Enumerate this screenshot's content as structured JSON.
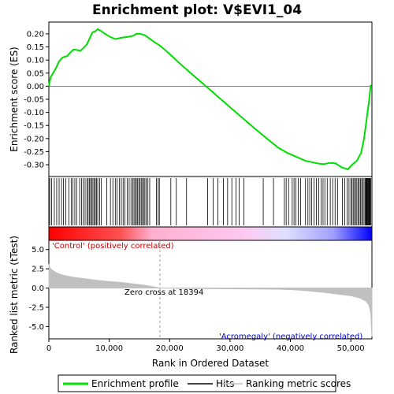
{
  "chart_data": [
    {
      "type": "line",
      "title": "Enrichment plot: V$EVI1_04",
      "xlabel": "",
      "ylabel": "Enrichment score (ES)",
      "xlim": [
        0,
        53500
      ],
      "ylim": [
        -0.345,
        0.245
      ],
      "yticks": [
        0.2,
        0.15,
        0.1,
        0.05,
        0.0,
        -0.05,
        -0.1,
        -0.15,
        -0.2,
        -0.25,
        -0.3
      ],
      "ytick_labels": [
        "0.20",
        "0.15",
        "0.10",
        "0.05",
        "0.00",
        "-0.05",
        "-0.10",
        "-0.15",
        "-0.20",
        "-0.25",
        "-0.30"
      ],
      "color": "#00dd00",
      "series": [
        {
          "name": "Enrichment profile",
          "x": [
            0,
            300,
            700,
            1200,
            1700,
            2300,
            3000,
            3600,
            4100,
            4700,
            5200,
            5700,
            6300,
            6800,
            7200,
            7700,
            8100,
            8500,
            9000,
            10000,
            11000,
            12000,
            13000,
            14000,
            14500,
            15000,
            15800,
            16500,
            17500,
            18394,
            20000,
            22000,
            24000,
            26000,
            28000,
            30000,
            32000,
            34000,
            36000,
            38000,
            39500,
            40500,
            41500,
            42500,
            43500,
            44500,
            45500,
            46500,
            47500,
            48500,
            49500,
            50200,
            51000,
            51700,
            52200,
            52600,
            53000,
            53300
          ],
          "y": [
            0.0,
            0.035,
            0.05,
            0.07,
            0.095,
            0.11,
            0.115,
            0.13,
            0.14,
            0.138,
            0.135,
            0.145,
            0.16,
            0.185,
            0.205,
            0.21,
            0.218,
            0.213,
            0.205,
            0.19,
            0.18,
            0.185,
            0.188,
            0.193,
            0.2,
            0.2,
            0.196,
            0.185,
            0.168,
            0.155,
            0.123,
            0.08,
            0.04,
            0.0,
            -0.04,
            -0.08,
            -0.12,
            -0.16,
            -0.198,
            -0.235,
            -0.255,
            -0.265,
            -0.275,
            -0.285,
            -0.29,
            -0.295,
            -0.298,
            -0.293,
            -0.295,
            -0.31,
            -0.318,
            -0.3,
            -0.285,
            -0.255,
            -0.2,
            -0.13,
            -0.06,
            0.005
          ]
        }
      ]
    },
    {
      "type": "bar",
      "title": "",
      "xlabel": "",
      "ylabel": "",
      "series": [
        {
          "name": "Hits",
          "x": [
            150,
            450,
            900,
            1300,
            1700,
            2100,
            2400,
            2800,
            3300,
            3700,
            4000,
            4300,
            4600,
            5100,
            5400,
            5700,
            6000,
            6300,
            6500,
            6700,
            6900,
            7100,
            7300,
            7500,
            7700,
            7900,
            8100,
            8400,
            8700,
            9600,
            10200,
            10600,
            11000,
            11300,
            11700,
            12000,
            12300,
            12600,
            13000,
            13300,
            13600,
            13900,
            14100,
            14300,
            14500,
            14700,
            14900,
            15100,
            15300,
            15500,
            15700,
            15900,
            16100,
            16400,
            16700,
            17800,
            18100,
            18300,
            20200,
            21100,
            22800,
            26300,
            27200,
            28000,
            28900,
            29600,
            30300,
            31000,
            31500,
            32300,
            35500,
            37200,
            39000,
            39300,
            39700,
            40300,
            40600,
            40900,
            41300,
            41700,
            42500,
            42900,
            43200,
            43500,
            43900,
            44300,
            44700,
            45100,
            45400,
            45700,
            46100,
            46600,
            47000,
            47400,
            47800,
            48600,
            49000,
            49400,
            49700,
            50000,
            50200,
            50400,
            50600,
            50800,
            51000,
            51200,
            51400,
            51600,
            51800,
            52000,
            52200,
            52400,
            52500,
            52600,
            52700,
            52800,
            52900,
            53000,
            53100,
            53200,
            53300
          ]
        }
      ]
    },
    {
      "type": "area",
      "title": "",
      "xlabel": "Rank in Ordered Dataset",
      "ylabel": "Ranked list metric (tTest)",
      "xlim": [
        0,
        53500
      ],
      "ylim": [
        -6.6,
        6.2
      ],
      "xticks": [
        0,
        10000,
        20000,
        30000,
        40000,
        50000
      ],
      "xtick_labels": [
        "0",
        "10,000",
        "20,000",
        "30,000",
        "40,000",
        "50,000"
      ],
      "yticks": [
        5.0,
        2.5,
        0.0,
        -2.5,
        -5.0
      ],
      "ytick_labels": [
        "5.0",
        "2.5",
        "0.0",
        "-2.5",
        "-5.0"
      ],
      "zero_cross": 18394,
      "series": [
        {
          "name": "Ranking metric scores",
          "x": [
            0,
            200,
            600,
            1200,
            2000,
            3000,
            4500,
            6000,
            8000,
            10000,
            12000,
            14000,
            16000,
            18394,
            22000,
            26000,
            30000,
            34000,
            38000,
            40000,
            42000,
            44000,
            46000,
            48000,
            50000,
            51500,
            52500,
            53000,
            53300,
            53500
          ],
          "y": [
            3.1,
            2.6,
            2.3,
            2.0,
            1.75,
            1.55,
            1.35,
            1.2,
            1.0,
            0.85,
            0.72,
            0.55,
            0.35,
            0.0,
            -0.05,
            -0.08,
            -0.1,
            -0.12,
            -0.15,
            -0.2,
            -0.3,
            -0.45,
            -0.6,
            -0.8,
            -1.0,
            -1.3,
            -1.7,
            -2.2,
            -3.2,
            -6.3
          ]
        }
      ]
    }
  ],
  "annotations": {
    "positive_label": "'Control' (positively correlated)",
    "negative_label": "'Acromegaly' (negatively correlated)",
    "zero_cross_label": "Zero cross at 18394"
  },
  "legend": {
    "placement": "bottom",
    "items": [
      {
        "label": "Enrichment profile",
        "color": "#00dd00"
      },
      {
        "label": "Hits",
        "color": "#000000"
      },
      {
        "label": "Ranking metric scores",
        "color": "#c0c0c0"
      }
    ]
  },
  "colors": {
    "profile": "#00dd00",
    "positive_text": "#cc0000",
    "negative_text": "#0000cc",
    "metric_fill": "#c0c0c0",
    "zero_line": "#999999"
  }
}
